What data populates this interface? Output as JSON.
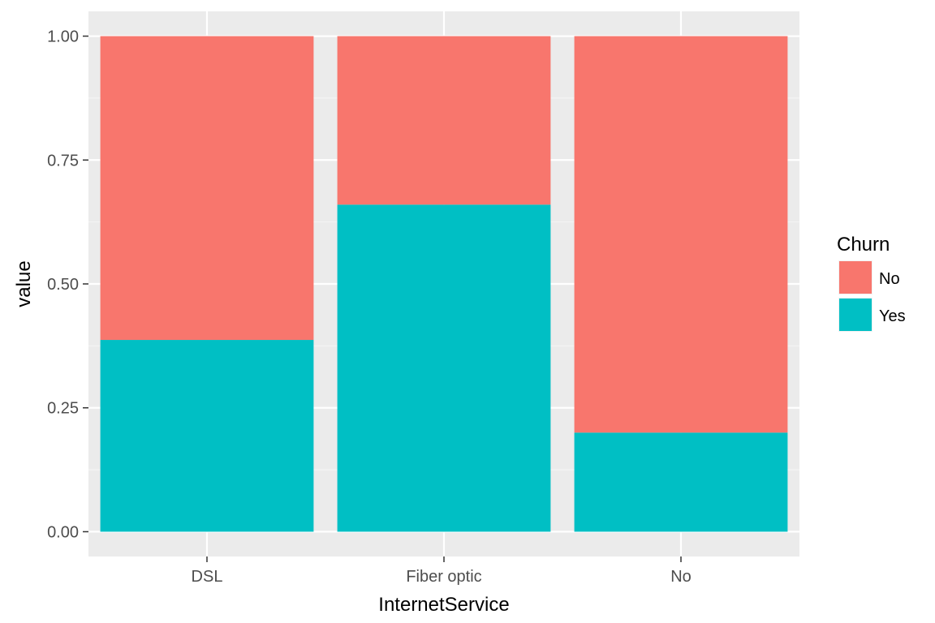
{
  "colors": {
    "panel_background": "#EBEBEB",
    "grid_major": "#FFFFFF",
    "grid_minor": "#F5F5F5",
    "tick_mark": "#333333",
    "tick_text": "#4D4D4D",
    "No": "#F8766D",
    "Yes": "#00BFC4"
  },
  "chart_data": {
    "type": "bar",
    "stacked": true,
    "title": "",
    "xlabel": "InternetService",
    "ylabel": "value",
    "categories": [
      "DSL",
      "Fiber optic",
      "No"
    ],
    "series": [
      {
        "name": "No",
        "values": [
          0.613,
          0.34,
          0.8
        ]
      },
      {
        "name": "Yes",
        "values": [
          0.387,
          0.66,
          0.2
        ]
      }
    ],
    "ylim": [
      -0.05,
      1.05
    ],
    "yticks": [
      0.0,
      0.25,
      0.5,
      0.75,
      1.0
    ],
    "ytick_labels": [
      "0.00",
      "0.25",
      "0.50",
      "0.75",
      "1.00"
    ],
    "grid": true,
    "legend": {
      "title": "Churn",
      "position": "right",
      "entries": [
        "No",
        "Yes"
      ]
    }
  }
}
